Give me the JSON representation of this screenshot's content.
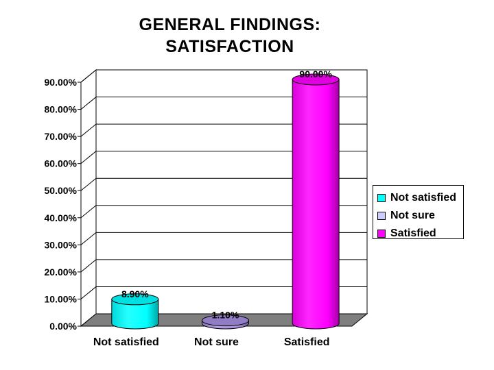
{
  "chart_data": {
    "type": "bar",
    "title": "GENERAL FINDINGS: SATISFACTION",
    "title_lines": [
      "GENERAL FINDINGS:",
      "SATISFACTION"
    ],
    "categories": [
      "Not satisfied",
      "Not sure",
      "Satisfied"
    ],
    "values": [
      8.9,
      1.1,
      90.0
    ],
    "value_labels": [
      "8.90%",
      "1.10%",
      "90.00%"
    ],
    "colors": [
      "#00ffff",
      "#a58ede",
      "#ff00ff"
    ],
    "ylim": [
      0,
      90
    ],
    "yticks": [
      "0.00%",
      "10.00%",
      "20.00%",
      "30.00%",
      "40.00%",
      "50.00%",
      "60.00%",
      "70.00%",
      "80.00%",
      "90.00%"
    ],
    "xlabel": "",
    "ylabel": "",
    "grid": true,
    "legend_position": "right",
    "legend": [
      {
        "label": "Not satisfied",
        "color": "#00ffff"
      },
      {
        "label": "Not sure",
        "color": "#ccccff"
      },
      {
        "label": "Satisfied",
        "color": "#ff00ff"
      }
    ]
  }
}
